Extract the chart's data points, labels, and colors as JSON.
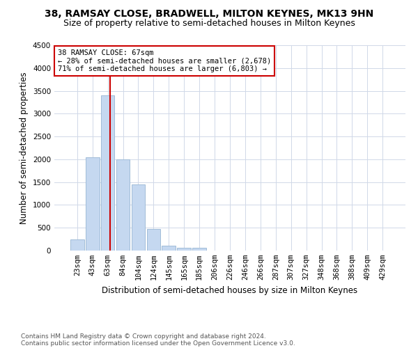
{
  "title": "38, RAMSAY CLOSE, BRADWELL, MILTON KEYNES, MK13 9HN",
  "subtitle": "Size of property relative to semi-detached houses in Milton Keynes",
  "xlabel": "Distribution of semi-detached houses by size in Milton Keynes",
  "ylabel": "Number of semi-detached properties",
  "footer1": "Contains HM Land Registry data © Crown copyright and database right 2024.",
  "footer2": "Contains public sector information licensed under the Open Government Licence v3.0.",
  "categories": [
    "23sqm",
    "43sqm",
    "63sqm",
    "84sqm",
    "104sqm",
    "124sqm",
    "145sqm",
    "165sqm",
    "185sqm",
    "206sqm",
    "226sqm",
    "246sqm",
    "266sqm",
    "287sqm",
    "307sqm",
    "327sqm",
    "348sqm",
    "368sqm",
    "388sqm",
    "409sqm",
    "429sqm"
  ],
  "values": [
    250,
    2050,
    3400,
    2000,
    1450,
    480,
    100,
    60,
    60,
    0,
    0,
    0,
    0,
    0,
    0,
    0,
    0,
    0,
    0,
    0,
    0
  ],
  "bar_color": "#c5d8f0",
  "bar_edge_color": "#a0bcd8",
  "property_line_x": 2.15,
  "annotation_text_line1": "38 RAMSAY CLOSE: 67sqm",
  "annotation_text_line2": "← 28% of semi-detached houses are smaller (2,678)",
  "annotation_text_line3": "71% of semi-detached houses are larger (6,803) →",
  "ylim": [
    0,
    4500
  ],
  "yticks": [
    0,
    500,
    1000,
    1500,
    2000,
    2500,
    3000,
    3500,
    4000,
    4500
  ],
  "bg_color": "#ffffff",
  "grid_color": "#d0d8e8",
  "annotation_box_color": "#ffffff",
  "annotation_box_edge_color": "#cc0000",
  "title_fontsize": 10,
  "subtitle_fontsize": 9,
  "axis_label_fontsize": 8.5,
  "tick_fontsize": 7.5,
  "annotation_fontsize": 7.5,
  "footer_fontsize": 6.5
}
